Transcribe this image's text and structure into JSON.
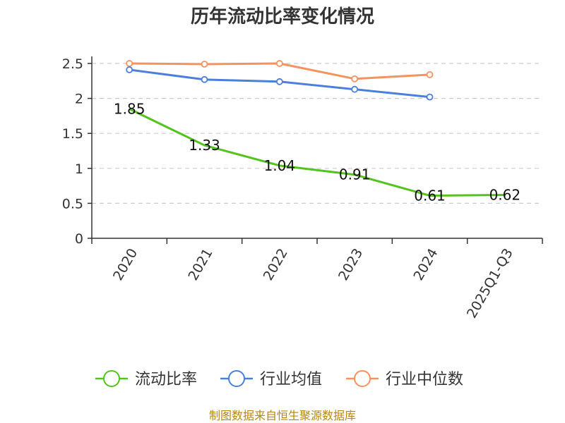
{
  "chart_data": {
    "type": "line",
    "title": "历年流动比率变化情况",
    "categories": [
      "2020",
      "2021",
      "2022",
      "2023",
      "2024",
      "2025Q1-Q3"
    ],
    "ylim": [
      0,
      2.5
    ],
    "yticks": [
      "0",
      "0.5",
      "1",
      "1.5",
      "2",
      "2.5"
    ],
    "grid": true,
    "legend_position": "bottom",
    "series": [
      {
        "name": "流动比率",
        "color": "#52c41a",
        "values": [
          1.85,
          1.33,
          1.04,
          0.91,
          0.61,
          0.62
        ],
        "labels": [
          "1.85",
          "1.33",
          "1.04",
          "0.91",
          "0.61",
          "0.62"
        ]
      },
      {
        "name": "行业均值",
        "color": "#4a7fdc",
        "values": [
          2.41,
          2.27,
          2.24,
          2.13,
          2.02,
          null
        ]
      },
      {
        "name": "行业中位数",
        "color": "#f5925e",
        "values": [
          2.5,
          2.49,
          2.5,
          2.28,
          2.34,
          null
        ]
      }
    ]
  },
  "source": "制图数据来自恒生聚源数据库"
}
